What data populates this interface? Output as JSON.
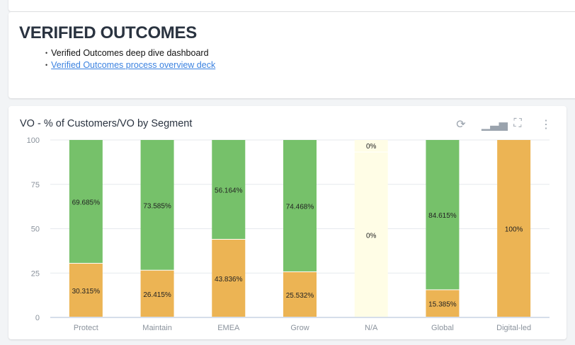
{
  "header": {
    "title": "VERIFIED OUTCOMES",
    "bullets": [
      {
        "text": "Verified Outcomes deep dive dashboard"
      },
      {
        "text": "Verified Outcomes process overview deck",
        "link": true
      }
    ]
  },
  "chart_card": {
    "title": "VO - % of Customers/VO by Segment",
    "icons": [
      "refresh-icon",
      "bar-chart-icon",
      "fullscreen-icon",
      "more-vertical-icon"
    ]
  },
  "chart_data": {
    "type": "bar",
    "stacked": true,
    "title": "VO - % of Customers/VO by Segment",
    "categories": [
      "Protect",
      "Maintain",
      "EMEA",
      "Grow",
      "N/A",
      "Global",
      "Digital-led"
    ],
    "yticks": [
      "0",
      "25",
      "50",
      "75",
      "100"
    ],
    "ylim": [
      0,
      100
    ],
    "series": [
      {
        "name": "orange",
        "color": "#ecb454",
        "values": [
          30.315,
          26.415,
          43.836,
          25.532,
          0,
          15.385,
          100
        ],
        "labels": [
          "30.315%",
          "26.415%",
          "43.836%",
          "25.532%",
          "",
          "15.385%",
          "100%"
        ]
      },
      {
        "name": "green",
        "color": "#76c16a",
        "values": [
          69.685,
          73.585,
          56.164,
          74.468,
          0,
          84.615,
          0
        ],
        "labels": [
          "69.685%",
          "73.585%",
          "56.164%",
          "74.468%",
          "",
          "84.615%",
          ""
        ]
      },
      {
        "name": "n/a-low",
        "color": "#fffde6",
        "values": [
          0,
          0,
          0,
          0,
          93,
          0,
          0
        ],
        "labels": [
          "",
          "",
          "",
          "",
          "0%",
          "",
          ""
        ]
      },
      {
        "name": "n/a-high",
        "color": "#fffde6",
        "values": [
          0,
          0,
          0,
          0,
          7,
          0,
          0
        ],
        "labels": [
          "",
          "",
          "",
          "",
          "0%",
          "",
          ""
        ]
      }
    ]
  }
}
